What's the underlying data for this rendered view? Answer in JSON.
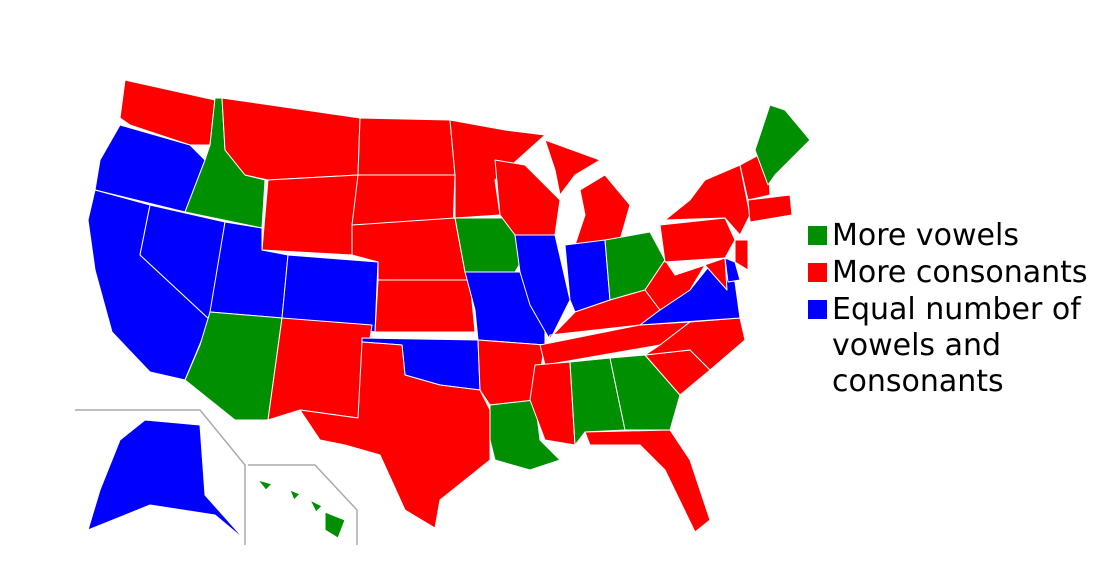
{
  "legend": {
    "items": [
      {
        "label": "More vowels",
        "color": "#008f00"
      },
      {
        "label": "More consonants",
        "color": "#ff0000"
      },
      {
        "label": "Equal number of vowels and consonants",
        "color": "#0000ff"
      }
    ]
  }
}
